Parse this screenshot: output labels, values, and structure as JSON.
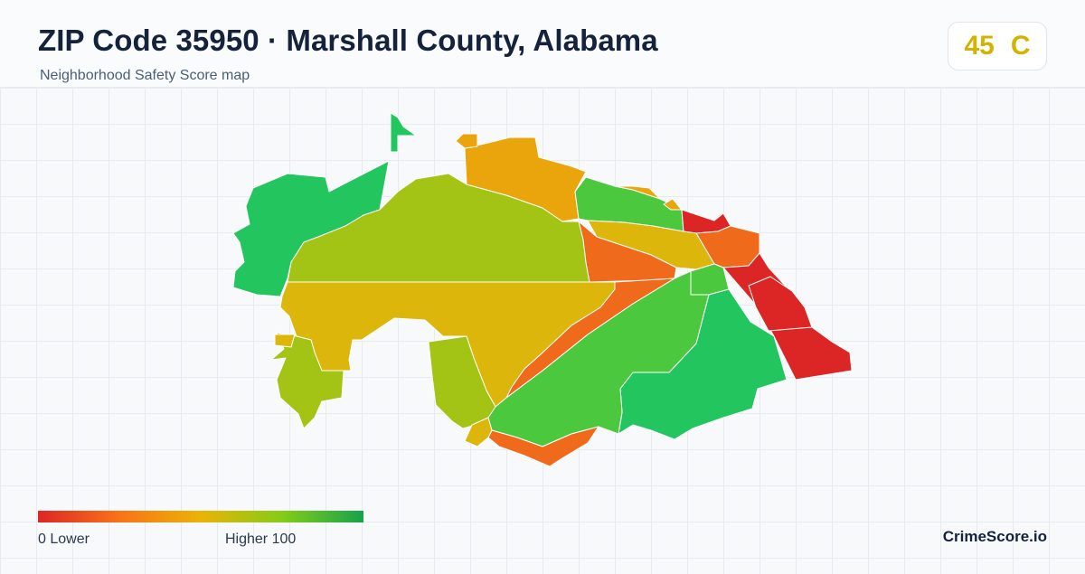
{
  "header": {
    "title": "ZIP Code 35950 · Marshall County, Alabama",
    "subtitle": "Neighborhood Safety Score map"
  },
  "score": {
    "value": "45",
    "grade": "C",
    "color": "#d2b400"
  },
  "legend": {
    "min_label": "0  Lower",
    "max_label": "Higher  100",
    "gradient_colors": [
      "#dc2626",
      "#f97316",
      "#eab308",
      "#84cc16",
      "#16a34a"
    ]
  },
  "brand": "CrimeScore.io",
  "map": {
    "region_colors": {
      "green": "#22c55e",
      "mid_green": "#4cc83e",
      "yellow_green": "#a3c414",
      "yellow": "#dcb60a",
      "amber": "#eaa50c",
      "orange": "#f06a1c",
      "red": "#dc2626"
    }
  }
}
